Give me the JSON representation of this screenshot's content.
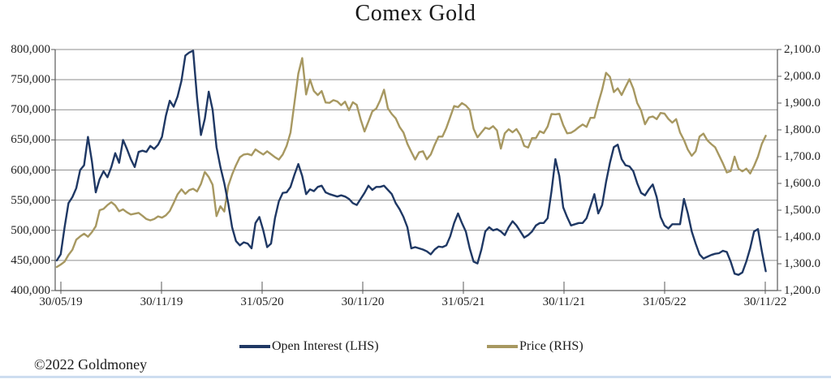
{
  "title": "Comex Gold",
  "copyright": "©2022 Goldmoney",
  "colors": {
    "open_interest_line": "#1f3864",
    "price_line": "#a79861",
    "gridline": "#8f8f8f",
    "axis": "#595959",
    "bottom_rule": "#cdddf0"
  },
  "legend": [
    {
      "label": "Open Interest (LHS)",
      "color": "#1f3864"
    },
    {
      "label": "Price (RHS)",
      "color": "#a79861"
    }
  ],
  "chart_data": {
    "type": "line",
    "title": "Comex Gold",
    "grid": "horizontal",
    "legend_position": "bottom",
    "x_axis": {
      "unit": "date (dd/mm/yy), weekly data",
      "tick_labels": [
        "30/05/19",
        "30/11/19",
        "31/05/20",
        "30/11/20",
        "31/05/21",
        "30/11/21",
        "31/05/22",
        "30/11/22"
      ]
    },
    "y_left": {
      "series": "Open Interest (LHS)",
      "min": 400000,
      "max": 800000,
      "tick_labels": [
        "800,000",
        "750,000",
        "700,000",
        "650,000",
        "600,000",
        "550,000",
        "500,000",
        "450,000",
        "400,000"
      ]
    },
    "y_right": {
      "series": "Price (RHS)",
      "min": 1200,
      "max": 2100,
      "tick_labels": [
        "2,100.0",
        "2,000.0",
        "1,900.0",
        "1,800.0",
        "1,700.0",
        "1,600.0",
        "1,500.0",
        "1,400.0",
        "1,300.0",
        "1,200.0"
      ]
    },
    "x_unit_note": "values are weekly samples, week 0 = 30/05/19 through week 182 = 30/11/22",
    "series": [
      {
        "name": "Open Interest (LHS)",
        "axis": "left",
        "color": "#1f3864",
        "values": [
          450000,
          460000,
          505000,
          545000,
          555000,
          570000,
          600000,
          608000,
          655000,
          615000,
          563000,
          585000,
          598000,
          588000,
          605000,
          628000,
          612000,
          650000,
          635000,
          618000,
          605000,
          630000,
          632000,
          630000,
          640000,
          635000,
          642000,
          655000,
          690000,
          715000,
          705000,
          722000,
          748000,
          790000,
          795000,
          798000,
          720000,
          658000,
          685000,
          730000,
          700000,
          638000,
          605000,
          578000,
          545000,
          505000,
          482000,
          475000,
          480000,
          478000,
          470000,
          512000,
          522000,
          500000,
          472000,
          478000,
          520000,
          548000,
          562000,
          563000,
          572000,
          592000,
          610000,
          590000,
          560000,
          568000,
          565000,
          572000,
          574000,
          563000,
          560000,
          558000,
          556000,
          558000,
          556000,
          552000,
          545000,
          542000,
          552000,
          562000,
          574000,
          567000,
          572000,
          572000,
          574000,
          567000,
          560000,
          545000,
          535000,
          522000,
          505000,
          470000,
          472000,
          470000,
          468000,
          465000,
          460000,
          468000,
          473000,
          472000,
          475000,
          490000,
          512000,
          528000,
          512000,
          498000,
          470000,
          448000,
          445000,
          468000,
          498000,
          505000,
          500000,
          502000,
          498000,
          492000,
          505000,
          515000,
          508000,
          498000,
          488000,
          492000,
          498000,
          508000,
          512000,
          512000,
          520000,
          565000,
          618000,
          590000,
          538000,
          522000,
          508000,
          510000,
          512000,
          512000,
          520000,
          540000,
          560000,
          528000,
          542000,
          580000,
          612000,
          638000,
          642000,
          618000,
          608000,
          606000,
          598000,
          578000,
          562000,
          558000,
          568000,
          576000,
          555000,
          522000,
          508000,
          503000,
          510000,
          510000,
          510000,
          552000,
          528000,
          498000,
          478000,
          460000,
          453000,
          456000,
          459000,
          461000,
          462000,
          466000,
          464000,
          448000,
          428000,
          426000,
          430000,
          448000,
          470000,
          498000,
          502000,
          465000,
          432000
        ]
      },
      {
        "name": "Price (RHS)",
        "axis": "right",
        "color": "#a79861",
        "values": [
          1288,
          1297,
          1308,
          1333,
          1352,
          1390,
          1402,
          1412,
          1401,
          1418,
          1440,
          1500,
          1505,
          1519,
          1530,
          1518,
          1496,
          1503,
          1492,
          1484,
          1487,
          1490,
          1479,
          1467,
          1462,
          1467,
          1477,
          1472,
          1481,
          1497,
          1527,
          1559,
          1578,
          1561,
          1575,
          1580,
          1570,
          1598,
          1643,
          1624,
          1595,
          1478,
          1515,
          1495,
          1590,
          1633,
          1668,
          1698,
          1708,
          1710,
          1705,
          1727,
          1717,
          1708,
          1720,
          1709,
          1698,
          1689,
          1708,
          1740,
          1790,
          1900,
          2010,
          2068,
          1932,
          1988,
          1945,
          1930,
          1945,
          1902,
          1901,
          1911,
          1906,
          1892,
          1905,
          1873,
          1903,
          1893,
          1839,
          1794,
          1831,
          1869,
          1879,
          1910,
          1950,
          1880,
          1859,
          1843,
          1811,
          1790,
          1748,
          1718,
          1689,
          1716,
          1720,
          1690,
          1708,
          1744,
          1775,
          1775,
          1807,
          1848,
          1889,
          1885,
          1900,
          1891,
          1875,
          1804,
          1772,
          1790,
          1808,
          1803,
          1814,
          1798,
          1730,
          1787,
          1802,
          1791,
          1803,
          1780,
          1740,
          1734,
          1769,
          1769,
          1795,
          1788,
          1812,
          1859,
          1858,
          1860,
          1818,
          1787,
          1789,
          1798,
          1810,
          1820,
          1811,
          1845,
          1845,
          1900,
          1950,
          2013,
          1998,
          1941,
          1955,
          1930,
          1960,
          1989,
          1954,
          1900,
          1872,
          1821,
          1846,
          1850,
          1840,
          1863,
          1861,
          1841,
          1827,
          1840,
          1790,
          1762,
          1726,
          1703,
          1720,
          1775,
          1786,
          1761,
          1747,
          1735,
          1705,
          1675,
          1641,
          1646,
          1700,
          1655,
          1645,
          1655,
          1637,
          1665,
          1700,
          1748,
          1778
        ]
      }
    ]
  }
}
